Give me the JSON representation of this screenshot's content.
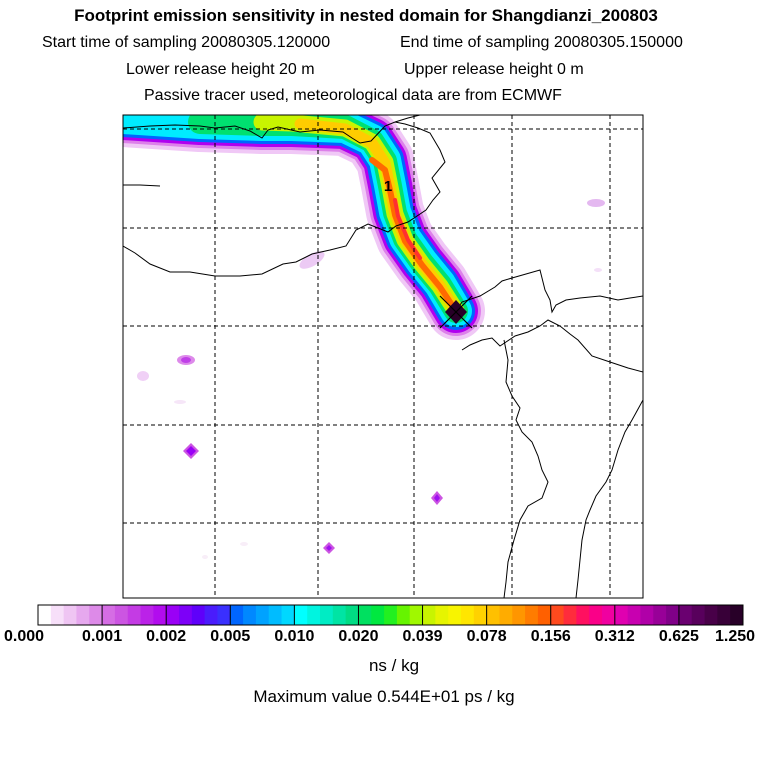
{
  "title": "Footprint emission sensitivity in nested domain for Shangdianzi_200803",
  "header": {
    "start_label": "Start time of sampling 20080305.120000",
    "end_label": "End time of sampling 20080305.150000",
    "lower_label": "Lower release height   20 m",
    "upper_label": "Upper release height    0 m",
    "tracer_label": "Passive tracer used, meteorological data are from ECMWF"
  },
  "map": {
    "marker_label": "1",
    "receptor_symbol": "diamond-cross"
  },
  "colorbar": {
    "ticks": [
      "0.000",
      "0.001",
      "0.002",
      "0.005",
      "0.010",
      "0.020",
      "0.039",
      "0.078",
      "0.156",
      "0.312",
      "0.625",
      "1.250"
    ],
    "colors": [
      [
        "#ffffff",
        "#f7dff9",
        "#efc5f3",
        "#e6a8ee",
        "#dd8ae8"
      ],
      [
        "#d56de4",
        "#cc55e2",
        "#c43be4",
        "#bb22e8",
        "#b20cee"
      ],
      [
        "#9a00f6",
        "#7d00f8",
        "#5f00fa",
        "#4a1cfc",
        "#3a30fe"
      ],
      [
        "#0066ff",
        "#0088ff",
        "#00a2ff",
        "#00bcff",
        "#00d8ff"
      ],
      [
        "#00ffff",
        "#00f4e0",
        "#00ecc4",
        "#00e4a4",
        "#00dc84"
      ],
      [
        "#00e060",
        "#00e840",
        "#22f020",
        "#66f400",
        "#a0f800"
      ],
      [
        "#c8f400",
        "#e6f400",
        "#f8f400",
        "#ffe600",
        "#ffd200"
      ],
      [
        "#ffc000",
        "#ffac00",
        "#ff9600",
        "#ff7c00",
        "#ff6000"
      ],
      [
        "#ff4a1e",
        "#ff2c3c",
        "#ff1060",
        "#fa0088",
        "#f000a0"
      ],
      [
        "#e000b0",
        "#c800b0",
        "#b000a8",
        "#980098",
        "#800088"
      ],
      [
        "#6a0070",
        "#58005c",
        "#480048",
        "#380038",
        "#280028"
      ]
    ],
    "units": "ns / kg"
  },
  "max_value": "Maximum value  0.544E+01 ps / kg"
}
